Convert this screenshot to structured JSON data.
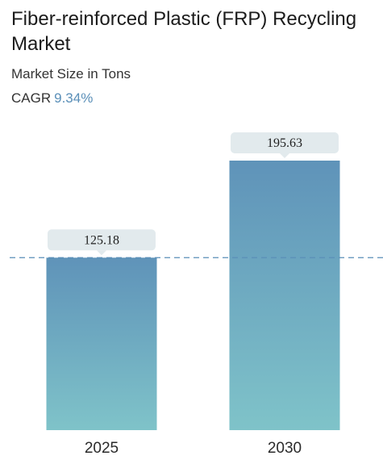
{
  "header": {
    "title": "Fiber-reinforced Plastic (FRP) Recycling Market",
    "subtitle": "Market Size in Tons",
    "cagr_label": "CAGR",
    "cagr_value": "9.34%"
  },
  "colors": {
    "bar_top": "#5f93b9",
    "bar_bottom": "#7fc3c9",
    "label_box": "#e2eaed",
    "reference_line": "#5a8fb8",
    "cagr_accent": "#5a8fb8"
  },
  "chart_data": {
    "type": "bar",
    "categories": [
      "2025",
      "2030"
    ],
    "values": [
      125.18,
      195.63
    ],
    "data_labels": [
      "125.18",
      "195.63"
    ],
    "title": "Fiber-reinforced Plastic (FRP) Recycling Market",
    "subtitle": "Market Size in Tons",
    "xlabel": "",
    "ylabel": "",
    "ylim": [
      0,
      195.63
    ],
    "grid": false,
    "reference_line": {
      "value": 125.18,
      "style": "dashed"
    }
  }
}
